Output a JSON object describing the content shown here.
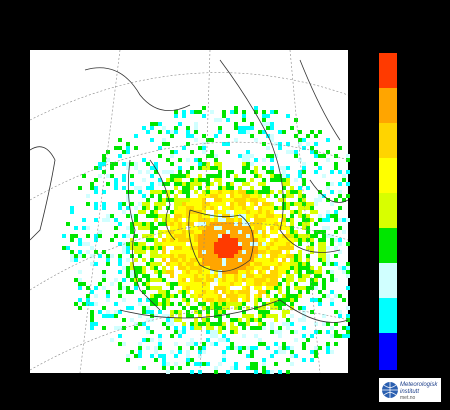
{
  "logo": {
    "title_lines": [
      "Meteorologisk",
      "institutt"
    ],
    "url": "met.no"
  }
}
